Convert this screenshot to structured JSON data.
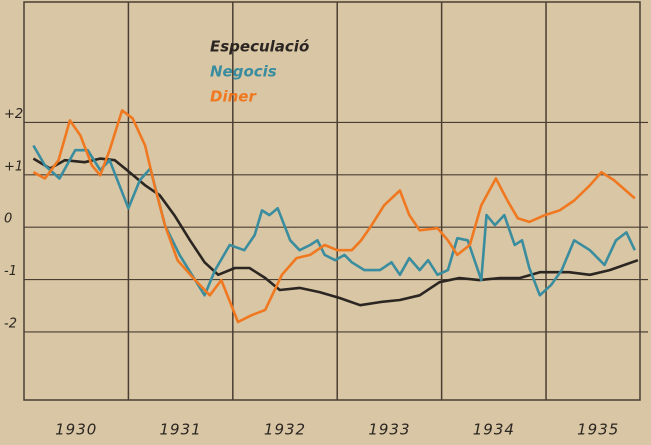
{
  "chart_data": {
    "type": "line",
    "xlim": [
      1930,
      1935.9
    ],
    "ylim": [
      -3.3,
      4.3
    ],
    "xticks": [
      {
        "value": 1930.5,
        "label": "1930"
      },
      {
        "value": 1931.5,
        "label": "1931"
      },
      {
        "value": 1932.5,
        "label": "1932"
      },
      {
        "value": 1933.5,
        "label": "1933"
      },
      {
        "value": 1934.5,
        "label": "1934"
      },
      {
        "value": 1935.5,
        "label": "1935"
      }
    ],
    "xgrid": [
      1931,
      1932,
      1933,
      1934,
      1935
    ],
    "yticks": [
      {
        "value": 2,
        "label": "+2"
      },
      {
        "value": 1,
        "label": "+1"
      },
      0,
      -1,
      -2
    ],
    "grid": true,
    "series": [
      {
        "name": "Especulació",
        "color": "#2b2622",
        "x": [
          1930.09,
          1930.25,
          1930.39,
          1930.58,
          1930.73,
          1930.87,
          1931.01,
          1931.16,
          1931.3,
          1931.44,
          1931.59,
          1931.73,
          1931.86,
          1932.02,
          1932.16,
          1932.31,
          1932.45,
          1932.64,
          1932.83,
          1933.02,
          1933.22,
          1933.41,
          1933.6,
          1933.79,
          1933.98,
          1934.17,
          1934.36,
          1934.56,
          1934.75,
          1934.94,
          1935.08,
          1935.22,
          1935.42,
          1935.61,
          1935.88
        ],
        "values": [
          1.31,
          1.12,
          1.28,
          1.24,
          1.31,
          1.28,
          1.05,
          0.8,
          0.61,
          0.23,
          -0.25,
          -0.67,
          -0.91,
          -0.78,
          -0.78,
          -0.97,
          -1.2,
          -1.16,
          -1.24,
          -1.35,
          -1.49,
          -1.43,
          -1.39,
          -1.3,
          -1.05,
          -0.97,
          -1.01,
          -0.97,
          -0.97,
          -0.86,
          -0.86,
          -0.86,
          -0.91,
          -0.82,
          -0.63
        ]
      },
      {
        "name": "Negocis",
        "color": "#3a8d9e",
        "x": [
          1930.09,
          1930.2,
          1930.34,
          1930.49,
          1930.61,
          1930.73,
          1930.82,
          1931.0,
          1931.11,
          1931.21,
          1931.35,
          1931.49,
          1931.64,
          1931.73,
          1931.83,
          1931.97,
          1932.11,
          1932.21,
          1932.28,
          1932.35,
          1932.43,
          1932.55,
          1932.64,
          1932.74,
          1932.81,
          1932.88,
          1932.98,
          1933.07,
          1933.14,
          1933.26,
          1933.41,
          1933.52,
          1933.6,
          1933.69,
          1933.79,
          1933.87,
          1933.96,
          1934.06,
          1934.15,
          1934.25,
          1934.38,
          1934.43,
          1934.51,
          1934.6,
          1934.7,
          1934.77,
          1934.84,
          1934.94,
          1935.05,
          1935.15,
          1935.27,
          1935.42,
          1935.56,
          1935.67,
          1935.77,
          1935.85
        ],
        "values": [
          1.56,
          1.18,
          0.93,
          1.47,
          1.47,
          1.09,
          1.28,
          0.36,
          0.9,
          1.12,
          0.04,
          -0.53,
          -1.01,
          -1.3,
          -0.82,
          -0.34,
          -0.44,
          -0.15,
          0.32,
          0.23,
          0.36,
          -0.25,
          -0.44,
          -0.34,
          -0.25,
          -0.53,
          -0.63,
          -0.53,
          -0.67,
          -0.82,
          -0.82,
          -0.67,
          -0.91,
          -0.59,
          -0.82,
          -0.63,
          -0.91,
          -0.82,
          -0.21,
          -0.25,
          -1.01,
          0.23,
          0.04,
          0.23,
          -0.34,
          -0.25,
          -0.78,
          -1.3,
          -1.1,
          -0.82,
          -0.25,
          -0.44,
          -0.72,
          -0.25,
          -0.1,
          -0.44
        ]
      },
      {
        "name": "Diner",
        "color": "#f07820",
        "x": [
          1930.09,
          1930.2,
          1930.33,
          1930.44,
          1930.54,
          1930.65,
          1930.73,
          1930.82,
          1930.94,
          1931.04,
          1931.16,
          1931.25,
          1931.35,
          1931.47,
          1931.64,
          1931.78,
          1931.89,
          1932.05,
          1932.18,
          1932.31,
          1932.47,
          1932.61,
          1932.74,
          1932.88,
          1933.0,
          1933.14,
          1933.23,
          1933.33,
          1933.45,
          1933.6,
          1933.69,
          1933.79,
          1933.96,
          1934.06,
          1934.15,
          1934.27,
          1934.38,
          1934.52,
          1934.63,
          1934.73,
          1934.84,
          1934.99,
          1935.13,
          1935.27,
          1935.42,
          1935.53,
          1935.65,
          1935.85
        ],
        "values": [
          1.05,
          0.93,
          1.28,
          2.04,
          1.75,
          1.18,
          0.99,
          1.47,
          2.23,
          2.08,
          1.56,
          0.8,
          0.04,
          -0.63,
          -1.01,
          -1.3,
          -1.01,
          -1.81,
          -1.68,
          -1.58,
          -0.91,
          -0.59,
          -0.53,
          -0.34,
          -0.44,
          -0.44,
          -0.25,
          0.04,
          0.42,
          0.7,
          0.23,
          -0.06,
          -0.02,
          -0.25,
          -0.53,
          -0.34,
          0.42,
          0.93,
          0.51,
          0.17,
          0.1,
          0.23,
          0.32,
          0.51,
          0.8,
          1.05,
          0.9,
          0.55
        ]
      }
    ]
  }
}
